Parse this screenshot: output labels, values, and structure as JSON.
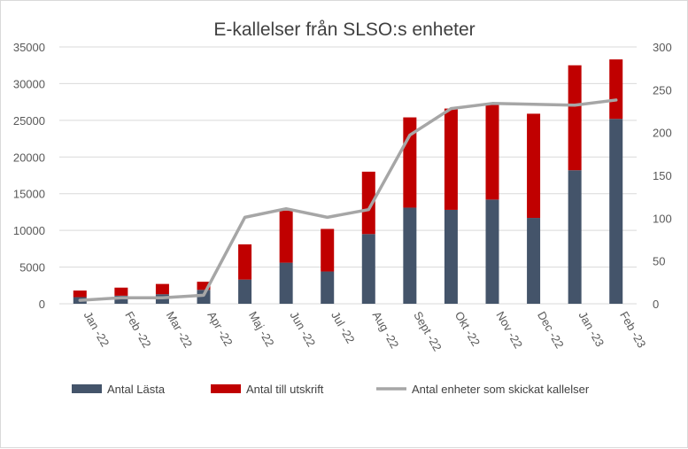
{
  "chart_data": {
    "type": "bar",
    "title": "E-kallelser från SLSO:s enheter",
    "categories": [
      "Jan -22",
      "Feb -22",
      "Mar -22",
      "Apr -22",
      "Maj -22",
      "Jun -22",
      "Jul -22",
      "Aug -22",
      "Sept -22",
      "Okt -22",
      "Nov -22",
      "Dec -22",
      "Jan -23",
      "Feb -23"
    ],
    "series": [
      {
        "name": "Antal Lästa",
        "kind": "bar",
        "axis": "left",
        "stacked": true,
        "color": "#44546a",
        "values": [
          900,
          1100,
          1300,
          1900,
          3300,
          5600,
          4400,
          9500,
          13100,
          12800,
          14200,
          11700,
          18200,
          25200
        ]
      },
      {
        "name": "Antal till utskrift",
        "kind": "bar",
        "axis": "left",
        "stacked": true,
        "color": "#c00000",
        "values": [
          900,
          1100,
          1400,
          1100,
          4800,
          7100,
          5800,
          8500,
          12300,
          13800,
          13100,
          14200,
          14300,
          8100
        ]
      },
      {
        "name": "Antal enheter som skickat kallelser",
        "kind": "line",
        "axis": "right",
        "color": "#a6a6a6",
        "values": [
          4,
          7,
          7,
          10,
          101,
          111,
          101,
          110,
          197,
          228,
          234,
          233,
          232,
          238
        ]
      }
    ],
    "y_left": {
      "min": 0,
      "max": 35000,
      "ticks": [
        0,
        5000,
        10000,
        15000,
        20000,
        25000,
        30000,
        35000
      ]
    },
    "y_right": {
      "min": 0,
      "max": 300,
      "ticks": [
        0,
        50,
        100,
        150,
        200,
        250,
        300
      ]
    },
    "grid": true,
    "legend": "bottom"
  }
}
